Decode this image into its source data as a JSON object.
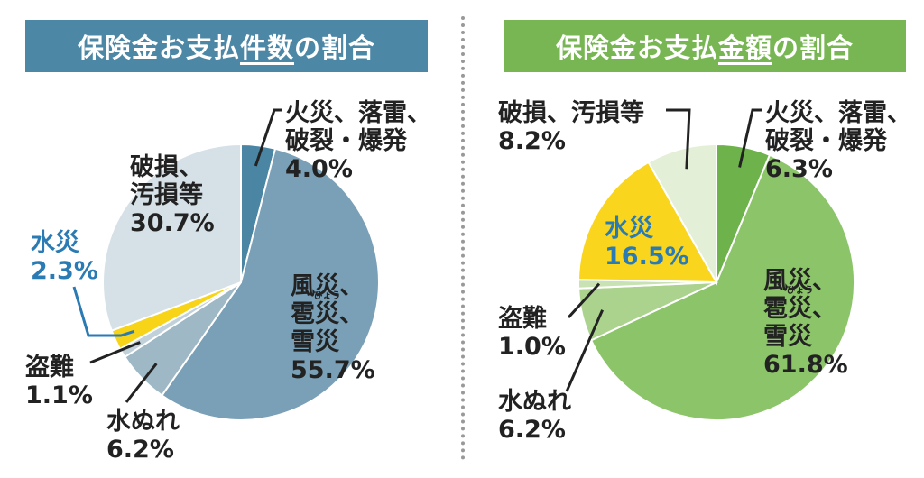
{
  "chart_data": [
    {
      "type": "pie",
      "title_pre": "保険金お支払",
      "title_hl": "件数",
      "title_post": "の割合",
      "slices": [
        {
          "label_lines": [
            "火災、落雷、",
            "破裂・爆発"
          ],
          "value": 4.0,
          "value_text": "4.0%",
          "color": "#4a86a4"
        },
        {
          "label_lines": [
            "風災、",
            "雹災、",
            "雪災"
          ],
          "value": 55.7,
          "value_text": "55.7%",
          "color": "#7aa0b7",
          "ruby_text": "ひょう"
        },
        {
          "label_lines": [
            "水ぬれ"
          ],
          "value": 6.2,
          "value_text": "6.2%",
          "color": "#9fb8c6"
        },
        {
          "label_lines": [
            "盗難"
          ],
          "value": 1.1,
          "value_text": "1.1%",
          "color": "#c1d1da"
        },
        {
          "label_lines": [
            "水災"
          ],
          "value": 2.3,
          "value_text": "2.3%",
          "color": "#f7d417"
        },
        {
          "label_lines": [
            "破損、",
            "汚損等"
          ],
          "value": 30.7,
          "value_text": "30.7%",
          "color": "#d6e1e7"
        }
      ]
    },
    {
      "type": "pie",
      "title_pre": "保険金お支払",
      "title_hl": "金額",
      "title_post": "の割合",
      "slices": [
        {
          "label_lines": [
            "火災、落雷、",
            "破裂・爆発"
          ],
          "value": 6.3,
          "value_text": "6.3%",
          "color": "#6db24a"
        },
        {
          "label_lines": [
            "風災、",
            "雹災、",
            "雪災"
          ],
          "value": 61.8,
          "value_text": "61.8%",
          "color": "#8cc46a",
          "ruby_text": "ひょう"
        },
        {
          "label_lines": [
            "水ぬれ"
          ],
          "value": 6.2,
          "value_text": "6.2%",
          "color": "#abd38d"
        },
        {
          "label_lines": [
            "盗難"
          ],
          "value": 1.0,
          "value_text": "1.0%",
          "color": "#c8e2b4"
        },
        {
          "label_lines": [
            "水災"
          ],
          "value": 16.5,
          "value_text": "16.5%",
          "color": "#f9d51d"
        },
        {
          "label_lines": [
            "破損、汚損等"
          ],
          "value": 8.2,
          "value_text": "8.2%",
          "color": "#e3efd6"
        }
      ]
    }
  ]
}
